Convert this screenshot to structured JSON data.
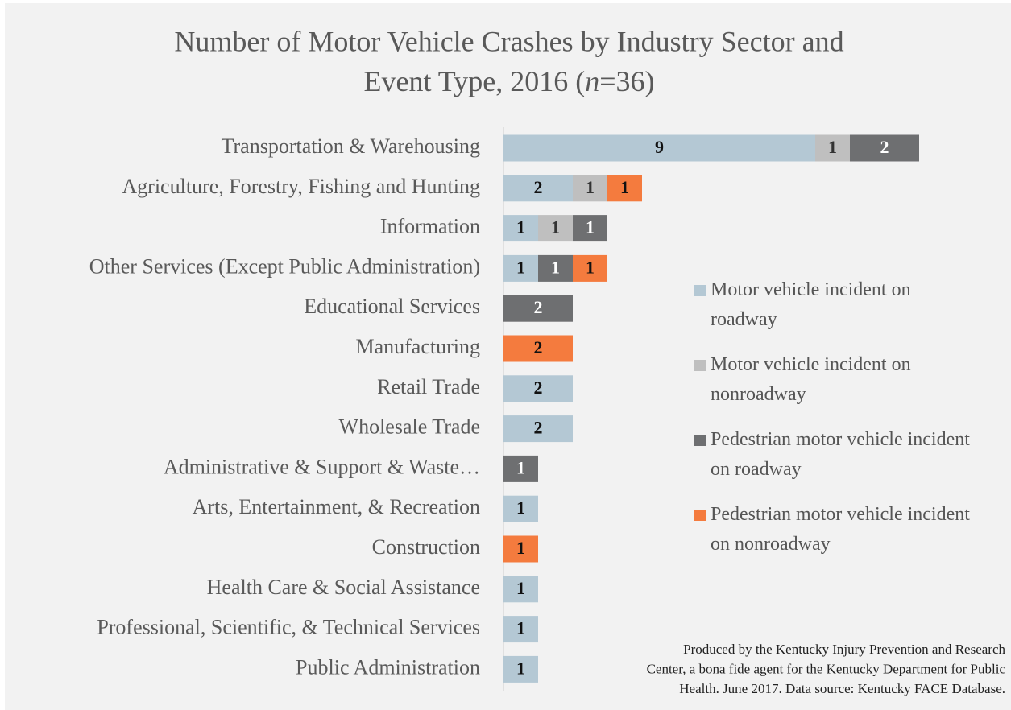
{
  "chart_data": {
    "type": "stacked-bar-horizontal",
    "title": {
      "line1": "Number of Motor Vehicle Crashes by Industry Sector and",
      "line2_start": "Event Type, 2016 (",
      "line2_italic": "n",
      "line2_end": "=36)"
    },
    "categories": [
      "Transportation & Warehousing",
      "Agriculture, Forestry, Fishing and Hunting",
      "Information",
      "Other Services (Except Public Administration)",
      "Educational Services",
      "Manufacturing",
      "Retail Trade",
      "Wholesale Trade",
      "Administrative & Support & Waste…",
      "Arts, Entertainment, & Recreation",
      "Construction",
      "Health Care & Social Assistance",
      "Professional, Scientific, & Technical Services",
      "Public Administration"
    ],
    "series": [
      {
        "name": "Motor vehicle incident on roadway",
        "color": "#b4c8d4",
        "label_color": "#111111",
        "values": [
          9,
          2,
          1,
          1,
          null,
          null,
          2,
          2,
          null,
          1,
          null,
          1,
          1,
          1
        ]
      },
      {
        "name": "Motor vehicle incident on nonroadway",
        "color": "#bfbfbf",
        "label_color": "#333333",
        "values": [
          1,
          1,
          1,
          null,
          null,
          null,
          null,
          null,
          null,
          null,
          null,
          null,
          null,
          null
        ]
      },
      {
        "name": "Pedestrian motor vehicle incident on roadway",
        "color": "#6e6f71",
        "label_color": "#ffffff",
        "values": [
          2,
          null,
          1,
          1,
          2,
          null,
          null,
          null,
          1,
          null,
          null,
          null,
          null,
          null
        ]
      },
      {
        "name": "Pedestrian motor vehicle incident on nonroadway",
        "color": "#f47b3e",
        "label_color": "#111111",
        "values": [
          null,
          1,
          null,
          1,
          null,
          2,
          null,
          null,
          null,
          null,
          1,
          null,
          null,
          null
        ]
      }
    ],
    "legend": "right",
    "note": [
      "Produced by the Kentucky Injury Prevention and Research",
      "Center, a bona fide agent for the Kentucky Department for Public",
      "Health. June 2017. Data source: Kentucky FACE Database."
    ]
  }
}
